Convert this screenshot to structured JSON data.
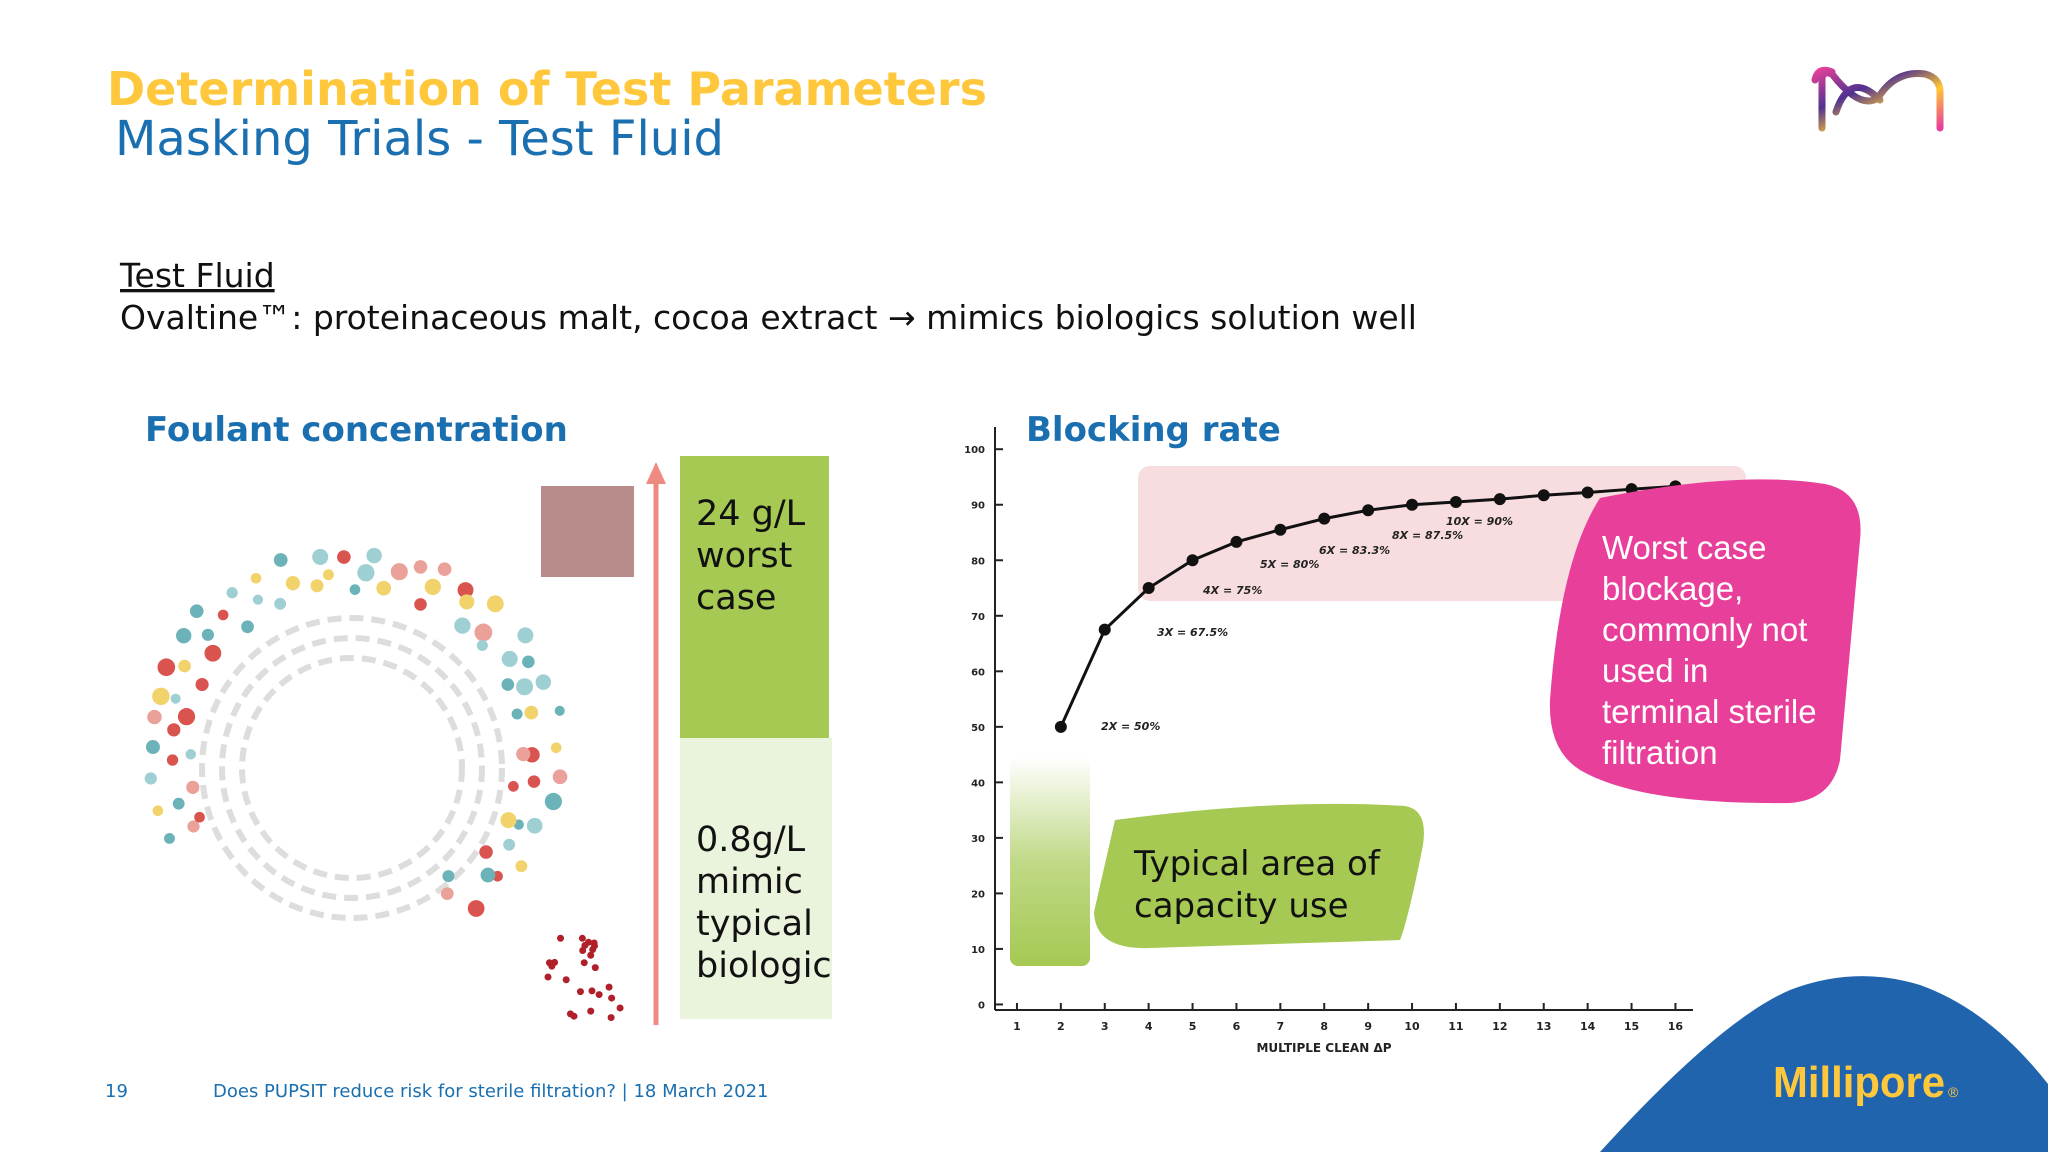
{
  "header": {
    "title": "Determination of Test Parameters",
    "subtitle": "Masking Trials - Test Fluid"
  },
  "intro": {
    "heading": "Test Fluid",
    "text": "Ovaltine™: proteinaceous malt, cocoa extract → mimics biologics solution well"
  },
  "foulant": {
    "heading": "Foulant concentration",
    "high_lines": [
      "24 g/L",
      "worst",
      "case"
    ],
    "low_lines": [
      "0.8g/L",
      "mimic",
      "typical",
      "biologic"
    ]
  },
  "blocking": {
    "heading": "Blocking rate"
  },
  "chart_data": {
    "type": "line",
    "x": [
      2,
      3,
      4,
      5,
      6,
      7,
      8,
      9,
      10,
      11,
      12,
      13,
      14,
      15,
      16
    ],
    "values": [
      50,
      67.5,
      75,
      80,
      83.3,
      85.5,
      87.5,
      89,
      90,
      90.5,
      91,
      91.7,
      92.2,
      92.8,
      93.3
    ],
    "color": "#111111",
    "xlim": [
      0.5,
      16.4
    ],
    "ylim": [
      -1,
      104
    ],
    "xticks": [
      1,
      2,
      3,
      4,
      5,
      6,
      7,
      8,
      9,
      10,
      11,
      12,
      13,
      14,
      15,
      16
    ],
    "yticks": [
      0,
      10,
      20,
      30,
      40,
      50,
      60,
      70,
      80,
      90,
      100
    ],
    "x_label": "MULTIPLE CLEAN ΔP",
    "annotations": [
      "2X = 50%",
      "3X = 67.5%",
      "4X = 75%",
      "5X = 80%",
      "6X = 83.3%",
      "8X = 87.5%",
      "10X = 90%"
    ]
  },
  "callouts": {
    "typical_lines": [
      "Typical area of",
      "capacity use"
    ],
    "worst_lines": [
      "Worst case",
      "blockage,",
      "commonly not",
      "used in",
      "terminal sterile",
      "filtration"
    ]
  },
  "footer": {
    "page": "19",
    "text": "Does PUPSIT reduce risk for sterile filtration? | 18 March 2021"
  },
  "brand": {
    "name": "Millipore",
    "mark": "®"
  }
}
